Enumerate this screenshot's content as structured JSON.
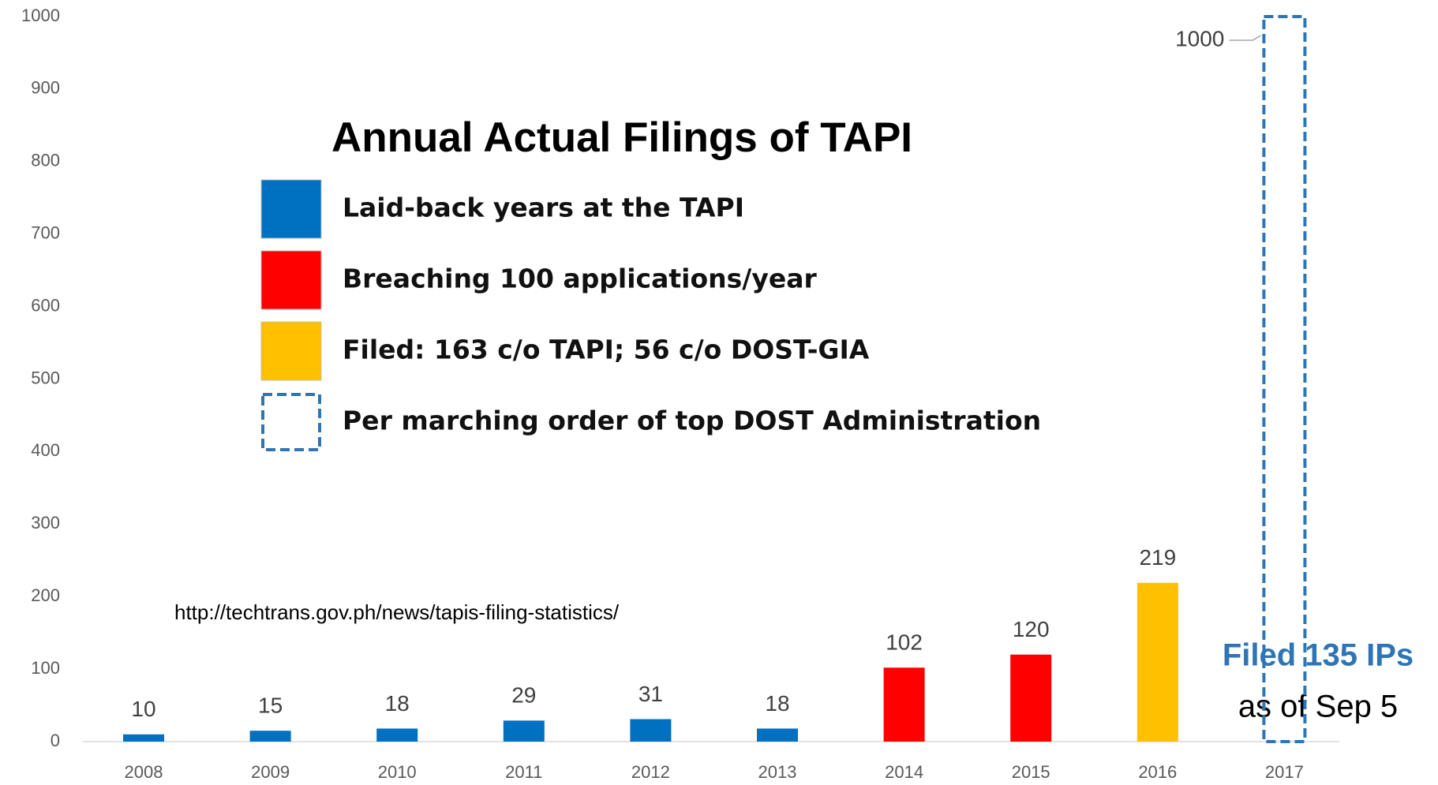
{
  "chart_data": {
    "type": "bar",
    "title": "Annual Actual Filings of TAPI",
    "categories": [
      "2008",
      "2009",
      "2010",
      "2011",
      "2012",
      "2013",
      "2014",
      "2015",
      "2016",
      "2017"
    ],
    "values": [
      10,
      15,
      18,
      29,
      31,
      18,
      102,
      120,
      219,
      1000
    ],
    "colors": [
      "#0070c0",
      "#0070c0",
      "#0070c0",
      "#0070c0",
      "#0070c0",
      "#0070c0",
      "#ff0000",
      "#ff0000",
      "#ffc000",
      "#2e75b6"
    ],
    "styles": [
      "solid",
      "solid",
      "solid",
      "solid",
      "solid",
      "solid",
      "solid",
      "solid",
      "solid",
      "dashed"
    ],
    "ylim": [
      0,
      1000
    ],
    "yticks": [
      0,
      100,
      200,
      300,
      400,
      500,
      600,
      700,
      800,
      900,
      1000
    ],
    "grid": false,
    "legend": [
      {
        "label": "Laid-back years at the TAPI",
        "color": "#0070c0",
        "style": "solid"
      },
      {
        "label": "Breaching 100 applications/year",
        "color": "#ff0000",
        "style": "solid"
      },
      {
        "label": "Filed: 163 c/o TAPI; 56 c/o DOST-GIA",
        "color": "#ffc000",
        "style": "solid"
      },
      {
        "label": "Per marching order of top DOST Administration",
        "color": "#2e75b6",
        "style": "dashed"
      }
    ],
    "annotations": [
      "http://techtrans.gov.ph/news/tapis-filing-statistics/",
      "Filed 135 IPs",
      "as of Sep 5"
    ]
  }
}
